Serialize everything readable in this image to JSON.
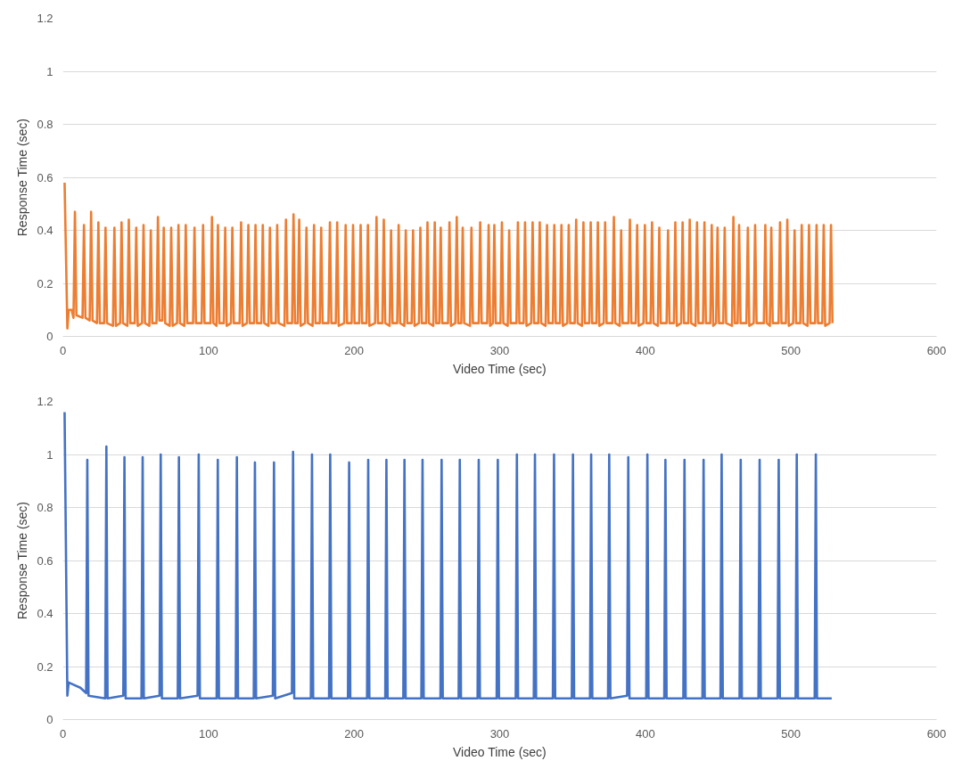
{
  "chart_data": [
    {
      "type": "line",
      "xlabel": "Video Time (sec)",
      "ylabel": "Response Time (sec)",
      "xlim": [
        0,
        600
      ],
      "xticks": [
        0,
        100,
        200,
        300,
        400,
        500,
        600
      ],
      "ylim": [
        0,
        1.2
      ],
      "yticks": [
        0,
        0.2,
        0.4,
        0.6,
        0.8,
        1,
        1.2
      ],
      "grid": "y",
      "series": [
        {
          "color": "#ed7d31",
          "x": [
            1.2,
            3.1,
            4,
            6,
            7.3,
            8.3,
            9.3,
            13.5,
            14.5,
            15.5,
            18.4,
            19.4,
            20.4,
            23.4,
            24.4,
            25.4,
            28.3,
            29.3,
            30.3,
            34.4,
            35.4,
            36.4,
            39.3,
            40.3,
            41.3,
            44.3,
            45.3,
            46.3,
            49.4,
            50.4,
            51.4,
            54.4,
            55.4,
            56.4,
            59.4,
            60.4,
            61.4,
            64.3,
            65.3,
            66.3,
            68.3,
            69.3,
            70.3,
            73.4,
            74.4,
            75.4,
            78.4,
            79.4,
            80.4,
            83.4,
            84.4,
            85.4,
            89.4,
            90.4,
            91.4,
            95.3,
            96.3,
            97.3,
            101.4,
            102.4,
            103.4,
            105.5,
            106.5,
            107.5,
            110.5,
            111.5,
            112.5,
            115.4,
            116.4,
            117.4,
            121.4,
            122.4,
            123.4,
            126.4,
            127.4,
            128.4,
            131.3,
            132.3,
            133.3,
            136.3,
            137.3,
            138.3,
            141.2,
            142.2,
            143.2,
            146.2,
            147.2,
            148.2,
            152.2,
            153.2,
            154.2,
            157.4,
            158.4,
            159.4,
            161.3,
            162.3,
            163.3,
            166.3,
            167.3,
            168.3,
            171.5,
            172.5,
            173.5,
            176.4,
            177.4,
            178.4,
            182.4,
            183.4,
            184.4,
            187.4,
            188.4,
            189.4,
            193.2,
            194.2,
            195.2,
            198.3,
            199.3,
            200.3,
            203.5,
            204.5,
            205.5,
            208.5,
            209.5,
            210.5,
            214.4,
            215.4,
            216.4,
            219.4,
            220.4,
            221.4,
            224.4,
            225.4,
            226.4,
            229.6,
            230.6,
            231.6,
            234.5,
            235.5,
            236.5,
            239.5,
            240.5,
            241.5,
            244.5,
            245.5,
            246.5,
            249.4,
            250.4,
            251.4,
            254.4,
            255.4,
            256.4,
            258.5,
            259.5,
            260.5,
            264.5,
            265.5,
            266.5,
            269.5,
            270.5,
            271.5,
            273.6,
            274.6,
            275.6,
            279.6,
            280.6,
            281.6,
            285.6,
            286.6,
            287.6,
            291.4,
            292.4,
            293.4,
            295.3,
            296.3,
            297.3,
            300.5,
            301.5,
            302.5,
            305.5,
            306.5,
            307.5,
            311.5,
            312.5,
            313.5,
            316.4,
            317.4,
            318.4,
            321.6,
            322.6,
            323.6,
            326.5,
            327.5,
            328.5,
            331.5,
            332.5,
            333.5,
            336.5,
            337.5,
            338.5,
            341.4,
            342.4,
            343.4,
            346.4,
            347.4,
            348.4,
            351.5,
            352.5,
            353.5,
            356.5,
            357.5,
            358.5,
            361.5,
            362.5,
            363.5,
            366.4,
            367.4,
            368.4,
            371.4,
            372.4,
            373.4,
            377.4,
            378.4,
            379.4,
            382.4,
            383.4,
            384.4,
            388.4,
            389.4,
            390.4,
            393.4,
            394.4,
            395.4,
            398.7,
            399.7,
            400.7,
            403.6,
            404.6,
            405.6,
            408.6,
            409.6,
            410.6,
            414.6,
            415.6,
            416.6,
            419.6,
            420.6,
            421.6,
            424.6,
            425.6,
            426.6,
            429.5,
            430.5,
            431.5,
            434.5,
            435.5,
            436.5,
            439.6,
            440.6,
            441.6,
            444.6,
            445.6,
            446.6,
            448.6,
            449.6,
            450.6,
            453.5,
            454.5,
            455.5,
            459.5,
            460.5,
            461.5,
            463.4,
            464.4,
            465.4,
            469.4,
            470.4,
            471.4,
            474.4,
            475.4,
            476.4,
            481.4,
            482.4,
            483.4,
            485.5,
            486.5,
            487.5,
            491.5,
            492.5,
            493.5,
            496.5,
            497.5,
            498.5,
            501.5,
            502.5,
            503.5,
            506.4,
            507.4,
            508.4,
            511.4,
            512.4,
            513.4,
            516.6,
            517.6,
            518.6,
            521.5,
            522.5,
            523.5,
            526.5,
            527.5,
            528.5
          ],
          "values": [
            0.58,
            0.03,
            0.1,
            0.1,
            0.07,
            0.47,
            0.08,
            0.07,
            0.42,
            0.07,
            0.06,
            0.47,
            0.06,
            0.05,
            0.43,
            0.05,
            0.05,
            0.41,
            0.05,
            0.04,
            0.41,
            0.04,
            0.05,
            0.43,
            0.05,
            0.04,
            0.44,
            0.05,
            0.05,
            0.41,
            0.04,
            0.05,
            0.42,
            0.05,
            0.04,
            0.4,
            0.05,
            0.05,
            0.45,
            0.06,
            0.06,
            0.41,
            0.05,
            0.04,
            0.41,
            0.04,
            0.05,
            0.42,
            0.05,
            0.04,
            0.42,
            0.05,
            0.05,
            0.41,
            0.05,
            0.05,
            0.42,
            0.05,
            0.05,
            0.45,
            0.05,
            0.04,
            0.42,
            0.05,
            0.05,
            0.41,
            0.04,
            0.05,
            0.41,
            0.05,
            0.05,
            0.43,
            0.04,
            0.05,
            0.42,
            0.05,
            0.05,
            0.42,
            0.05,
            0.05,
            0.42,
            0.05,
            0.04,
            0.41,
            0.05,
            0.05,
            0.42,
            0.05,
            0.04,
            0.44,
            0.05,
            0.05,
            0.46,
            0.05,
            0.05,
            0.44,
            0.04,
            0.05,
            0.41,
            0.05,
            0.04,
            0.42,
            0.05,
            0.05,
            0.41,
            0.05,
            0.05,
            0.43,
            0.05,
            0.05,
            0.43,
            0.04,
            0.05,
            0.42,
            0.05,
            0.05,
            0.42,
            0.05,
            0.05,
            0.42,
            0.05,
            0.05,
            0.42,
            0.04,
            0.05,
            0.45,
            0.05,
            0.05,
            0.44,
            0.05,
            0.04,
            0.4,
            0.05,
            0.05,
            0.42,
            0.05,
            0.04,
            0.4,
            0.05,
            0.05,
            0.4,
            0.04,
            0.05,
            0.41,
            0.05,
            0.05,
            0.43,
            0.05,
            0.04,
            0.43,
            0.05,
            0.05,
            0.41,
            0.05,
            0.05,
            0.43,
            0.04,
            0.05,
            0.45,
            0.05,
            0.05,
            0.41,
            0.05,
            0.04,
            0.41,
            0.05,
            0.05,
            0.43,
            0.05,
            0.05,
            0.42,
            0.04,
            0.05,
            0.42,
            0.05,
            0.05,
            0.43,
            0.05,
            0.04,
            0.4,
            0.05,
            0.05,
            0.43,
            0.05,
            0.05,
            0.43,
            0.04,
            0.05,
            0.43,
            0.05,
            0.05,
            0.43,
            0.05,
            0.04,
            0.42,
            0.05,
            0.05,
            0.42,
            0.05,
            0.05,
            0.42,
            0.04,
            0.05,
            0.42,
            0.05,
            0.05,
            0.44,
            0.05,
            0.04,
            0.43,
            0.05,
            0.05,
            0.43,
            0.05,
            0.05,
            0.43,
            0.04,
            0.05,
            0.43,
            0.05,
            0.05,
            0.45,
            0.05,
            0.04,
            0.4,
            0.05,
            0.05,
            0.44,
            0.05,
            0.05,
            0.42,
            0.04,
            0.05,
            0.42,
            0.05,
            0.05,
            0.43,
            0.05,
            0.04,
            0.41,
            0.05,
            0.05,
            0.4,
            0.05,
            0.05,
            0.43,
            0.04,
            0.05,
            0.43,
            0.05,
            0.05,
            0.44,
            0.05,
            0.04,
            0.43,
            0.05,
            0.05,
            0.43,
            0.05,
            0.05,
            0.42,
            0.04,
            0.05,
            0.41,
            0.05,
            0.05,
            0.41,
            0.05,
            0.04,
            0.45,
            0.05,
            0.05,
            0.42,
            0.05,
            0.05,
            0.41,
            0.04,
            0.05,
            0.42,
            0.05,
            0.05,
            0.42,
            0.05,
            0.04,
            0.41,
            0.05,
            0.05,
            0.43,
            0.05,
            0.05,
            0.44,
            0.04,
            0.05,
            0.4,
            0.05,
            0.05,
            0.42,
            0.05,
            0.04,
            0.42,
            0.05,
            0.05,
            0.42,
            0.05,
            0.05,
            0.42,
            0.04,
            0.05,
            0.42,
            0.05
          ]
        }
      ]
    },
    {
      "type": "line",
      "xlabel": "Video Time (sec)",
      "ylabel": "Response Time (sec)",
      "xlim": [
        0,
        600
      ],
      "xticks": [
        0,
        100,
        200,
        300,
        400,
        500,
        600
      ],
      "ylim": [
        0,
        1.2
      ],
      "yticks": [
        0,
        0.2,
        0.4,
        0.6,
        0.8,
        1,
        1.2
      ],
      "grid": "y",
      "series": [
        {
          "color": "#4472c4",
          "x": [
            1.2,
            3.1,
            4,
            8,
            12,
            16,
            16.8,
            17.6,
            29.1,
            29.9,
            30.7,
            41.5,
            42.3,
            43.1,
            54,
            54.8,
            55.6,
            66.4,
            67.2,
            68,
            78.9,
            79.7,
            80.5,
            92.5,
            93.3,
            94.1,
            105.6,
            106.4,
            107.2,
            118.7,
            119.5,
            120.3,
            131.1,
            131.9,
            132.7,
            144.2,
            145,
            145.8,
            157.3,
            158.1,
            158.9,
            170.3,
            171.1,
            171.9,
            182.8,
            183.6,
            184.4,
            195.8,
            196.6,
            197.4,
            208.9,
            209.7,
            210.5,
            221.4,
            222.2,
            223,
            233.8,
            234.6,
            235.4,
            246.2,
            247,
            247.8,
            259.3,
            260.1,
            260.9,
            271.8,
            272.6,
            273.4,
            284.8,
            285.6,
            286.4,
            297.9,
            298.7,
            299.5,
            311,
            311.8,
            312.6,
            323.4,
            324.2,
            325,
            336.5,
            337.3,
            338.1,
            349.5,
            350.3,
            351.1,
            362,
            362.8,
            363.6,
            374.4,
            375.2,
            376,
            387.5,
            388.3,
            389.1,
            400.6,
            401.4,
            402.2,
            413,
            413.8,
            414.6,
            426.1,
            426.9,
            427.7,
            439.2,
            440,
            440.8,
            451.6,
            452.4,
            453.2,
            464.7,
            465.5,
            466.3,
            477.7,
            478.5,
            479.3,
            490.8,
            491.6,
            492.4,
            503.2,
            504,
            504.8,
            516.3,
            517.1,
            517.9,
            528
          ],
          "values": [
            1.16,
            0.09,
            0.14,
            0.13,
            0.12,
            0.1,
            0.98,
            0.09,
            0.08,
            1.03,
            0.08,
            0.09,
            0.99,
            0.08,
            0.08,
            0.99,
            0.08,
            0.09,
            1.0,
            0.08,
            0.08,
            0.99,
            0.08,
            0.09,
            1.0,
            0.08,
            0.08,
            0.98,
            0.08,
            0.08,
            0.99,
            0.08,
            0.08,
            0.97,
            0.08,
            0.09,
            0.97,
            0.08,
            0.1,
            1.01,
            0.08,
            0.08,
            1.0,
            0.08,
            0.08,
            1.0,
            0.08,
            0.08,
            0.97,
            0.08,
            0.08,
            0.98,
            0.08,
            0.08,
            0.98,
            0.08,
            0.08,
            0.98,
            0.08,
            0.08,
            0.98,
            0.08,
            0.08,
            0.98,
            0.08,
            0.08,
            0.98,
            0.08,
            0.08,
            0.98,
            0.08,
            0.08,
            0.98,
            0.08,
            0.08,
            1.0,
            0.08,
            0.08,
            1.0,
            0.08,
            0.08,
            1.0,
            0.08,
            0.08,
            1.0,
            0.08,
            0.08,
            1.0,
            0.08,
            0.08,
            1.0,
            0.08,
            0.09,
            0.99,
            0.08,
            0.08,
            1.0,
            0.08,
            0.08,
            0.98,
            0.08,
            0.08,
            0.98,
            0.08,
            0.08,
            0.98,
            0.08,
            0.08,
            1.0,
            0.08,
            0.08,
            0.98,
            0.08,
            0.08,
            0.98,
            0.08,
            0.08,
            0.98,
            0.08,
            0.08,
            1.0,
            0.08,
            0.08,
            1.0,
            0.08,
            0.08
          ]
        }
      ]
    }
  ]
}
